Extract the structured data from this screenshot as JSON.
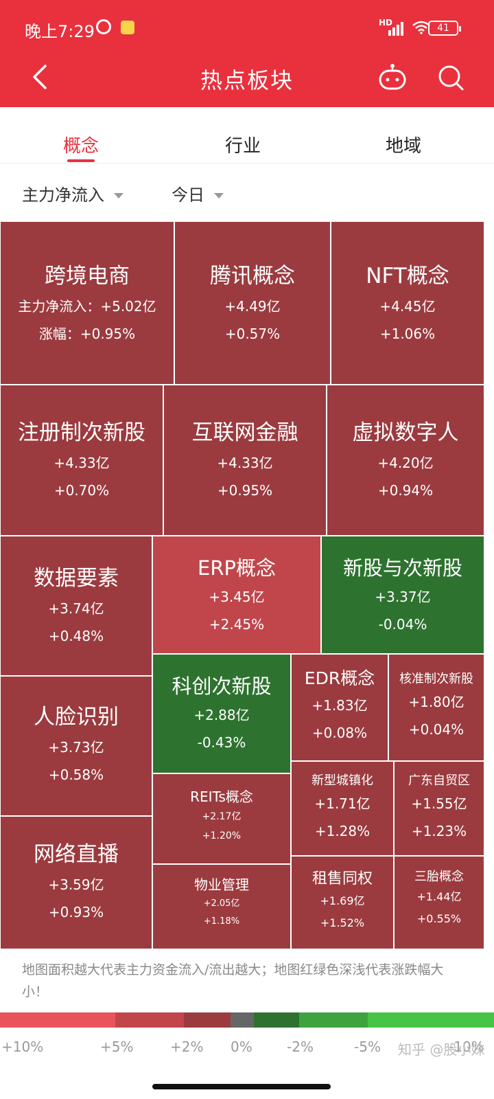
{
  "status_bar": {
    "time": "晚上7:29",
    "network": "HD",
    "battery": "41"
  },
  "header": {
    "title": "热点板块"
  },
  "tabs": [
    {
      "label": "概念",
      "active": true
    },
    {
      "label": "行业",
      "active": false
    },
    {
      "label": "地域",
      "active": false
    }
  ],
  "filters": {
    "metric": "主力净流入",
    "period": "今日"
  },
  "colors": {
    "brand": "#e9303d",
    "red_dark": "#9b3b3f",
    "red_light": "#c0464b",
    "green": "#2e7230"
  },
  "treemap": {
    "cells": [
      {
        "name": "跨境电商",
        "flow": "主力净流入：+5.02亿",
        "change": "涨幅：+0.95%"
      },
      {
        "name": "腾讯概念",
        "flow": "+4.49亿",
        "change": "+0.57%"
      },
      {
        "name": "NFT概念",
        "flow": "+4.45亿",
        "change": "+1.06%"
      },
      {
        "name": "注册制次新股",
        "flow": "+4.33亿",
        "change": "+0.70%"
      },
      {
        "name": "互联网金融",
        "flow": "+4.33亿",
        "change": "+0.95%"
      },
      {
        "name": "虚拟数字人",
        "flow": "+4.20亿",
        "change": "+0.94%"
      },
      {
        "name": "数据要素",
        "flow": "+3.74亿",
        "change": "+0.48%"
      },
      {
        "name": "ERP概念",
        "flow": "+3.45亿",
        "change": "+2.45%"
      },
      {
        "name": "新股与次新股",
        "flow": "+3.37亿",
        "change": "-0.04%"
      },
      {
        "name": "人脸识别",
        "flow": "+3.73亿",
        "change": "+0.58%"
      },
      {
        "name": "科创次新股",
        "flow": "+2.88亿",
        "change": "-0.43%"
      },
      {
        "name": "EDR概念",
        "flow": "+1.83亿",
        "change": "+0.08%"
      },
      {
        "name": "核准制次新股",
        "flow": "+1.80亿",
        "change": "+0.04%"
      },
      {
        "name": "网络直播",
        "flow": "+3.59亿",
        "change": "+0.93%"
      },
      {
        "name": "REITs概念",
        "flow": "+2.17亿",
        "change": "+1.20%"
      },
      {
        "name": "新型城镇化",
        "flow": "+1.71亿",
        "change": "+1.28%"
      },
      {
        "name": "广东自贸区",
        "flow": "+1.55亿",
        "change": "+1.23%"
      },
      {
        "name": "物业管理",
        "flow": "+2.05亿",
        "change": "+1.18%"
      },
      {
        "name": "租售同权",
        "flow": "+1.69亿",
        "change": "+1.52%"
      },
      {
        "name": "三胎概念",
        "flow": "+1.44亿",
        "change": "+0.55%"
      }
    ]
  },
  "legend_note": "地图面积越大代表主力资金流入/流出越大；地图红绿色深浅代表涨跌幅大小！",
  "scale": {
    "labels": [
      "+10%",
      "+5%",
      "+2%",
      "0%",
      "-2%",
      "-5%",
      "-10%"
    ],
    "colors": [
      "#e9545a",
      "#c0464b",
      "#9b3b3f",
      "#666666",
      "#2e7230",
      "#3ea33e",
      "#46c446"
    ]
  },
  "watermark": "知乎 @股小妹"
}
